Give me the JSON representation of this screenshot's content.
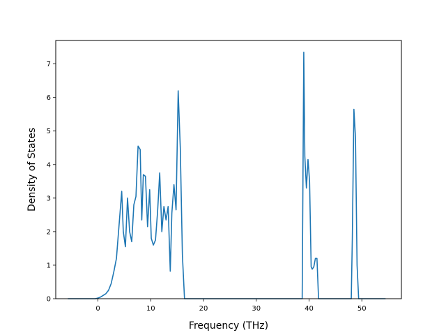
{
  "chart_data": {
    "type": "line",
    "title": "",
    "xlabel": "Frequency (THz)",
    "ylabel": "Density of States",
    "xlim": [
      -8.0,
      57.5
    ],
    "ylim": [
      0,
      7.7
    ],
    "xticks": [
      0,
      10,
      20,
      30,
      40,
      50
    ],
    "yticks": [
      0,
      1,
      2,
      3,
      4,
      5,
      6,
      7
    ],
    "grid": false,
    "legend": "none",
    "series": [
      {
        "color": "#1f77b4",
        "x": [
          -5.7,
          -0.5,
          0.0,
          0.5,
          1.0,
          1.5,
          2.0,
          2.5,
          3.0,
          3.5,
          4.0,
          4.5,
          4.8,
          5.2,
          5.6,
          6.0,
          6.4,
          6.8,
          7.2,
          7.6,
          8.0,
          8.3,
          8.6,
          9.0,
          9.4,
          9.8,
          10.1,
          10.5,
          10.9,
          11.3,
          11.7,
          12.1,
          12.5,
          12.9,
          13.3,
          13.7,
          14.0,
          14.4,
          14.8,
          15.2,
          15.6,
          16.0,
          16.4,
          16.8,
          17.2,
          38.7,
          39.0,
          39.2,
          39.5,
          39.8,
          40.1,
          40.4,
          40.6,
          40.9,
          41.2,
          41.5,
          41.8,
          42.0,
          48.0,
          48.2,
          48.5,
          48.8,
          49.1,
          49.4,
          49.7,
          54.5
        ],
        "y": [
          0.0,
          0.0,
          0.02,
          0.05,
          0.1,
          0.15,
          0.25,
          0.45,
          0.8,
          1.2,
          2.2,
          3.2,
          2.0,
          1.55,
          3.0,
          2.0,
          1.7,
          2.8,
          3.05,
          4.55,
          4.45,
          2.35,
          3.7,
          3.65,
          2.15,
          3.25,
          1.8,
          1.6,
          1.75,
          2.6,
          3.75,
          2.0,
          2.75,
          2.35,
          2.75,
          0.82,
          2.55,
          3.4,
          2.65,
          6.2,
          4.5,
          1.3,
          0.0,
          0.0,
          0.0,
          0.0,
          7.35,
          4.25,
          3.3,
          4.15,
          3.5,
          0.95,
          0.88,
          0.95,
          1.2,
          1.2,
          0.0,
          0.0,
          0.0,
          1.8,
          5.65,
          4.8,
          1.0,
          0.0,
          0.0,
          0.0
        ]
      }
    ]
  }
}
